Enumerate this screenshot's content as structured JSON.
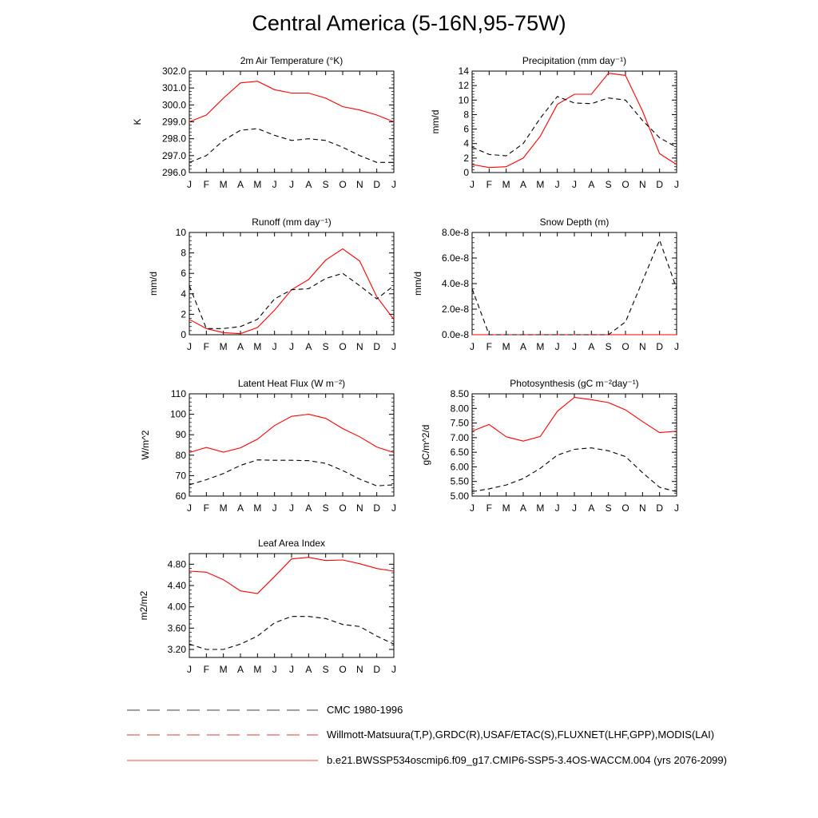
{
  "title": "Central America (5-16N,95-75W)",
  "colors": {
    "model": "#ff0000",
    "obs": "#000000"
  },
  "months": [
    "J",
    "F",
    "M",
    "A",
    "M",
    "J",
    "J",
    "A",
    "S",
    "O",
    "N",
    "D",
    "J"
  ],
  "legend": {
    "cmc": "CMC 1980-1996",
    "obs": "Willmott-Matsuura(T,P),GRDC(R),USAF/ETAC(S),FLUXNET(LHF,GPP),MODIS(LAI)",
    "model": "b.e21.BWSSP534oscmip6.f09_g17.CMIP6-SSP5-3.4OS-WACCM.004 (yrs 2076-2099)"
  },
  "chart_data": [
    {
      "type": "line",
      "title": "2m Air Temperature (°K)",
      "ylabel": "K",
      "ylim": [
        296.0,
        302.0
      ],
      "yticks": [
        "296.0",
        "297.0",
        "298.0",
        "299.0",
        "300.0",
        "301.0",
        "302.0"
      ],
      "series": [
        {
          "style": "solid-red",
          "values": [
            299.0,
            299.4,
            300.4,
            301.3,
            301.4,
            300.9,
            300.7,
            300.7,
            300.4,
            299.9,
            299.7,
            299.4,
            299.0
          ]
        },
        {
          "style": "dashed-black",
          "values": [
            296.6,
            297.0,
            297.9,
            298.5,
            298.6,
            298.2,
            297.9,
            298.0,
            297.9,
            297.5,
            297.0,
            296.6,
            296.6
          ]
        }
      ]
    },
    {
      "type": "line",
      "title": "Precipitation (mm day⁻¹)",
      "ylabel": "mm/d",
      "ylim": [
        0,
        14
      ],
      "yticks": [
        "0",
        "2",
        "4",
        "6",
        "8",
        "10",
        "12",
        "14"
      ],
      "series": [
        {
          "style": "solid-red",
          "values": [
            1.1,
            0.7,
            0.8,
            2.0,
            5.0,
            9.4,
            10.8,
            10.8,
            13.7,
            13.4,
            8.5,
            2.6,
            1.1
          ]
        },
        {
          "style": "dashed-black",
          "values": [
            3.5,
            2.5,
            2.3,
            4.0,
            7.5,
            10.5,
            9.6,
            9.5,
            10.3,
            10.0,
            7.2,
            4.8,
            3.5
          ]
        }
      ]
    },
    {
      "type": "line",
      "title": "Runoff (mm day⁻¹)",
      "ylabel": "mm/d",
      "ylim": [
        0,
        10
      ],
      "yticks": [
        "0",
        "2",
        "4",
        "6",
        "8",
        "10"
      ],
      "series": [
        {
          "style": "solid-red",
          "values": [
            1.5,
            0.6,
            0.2,
            0.1,
            0.7,
            2.4,
            4.4,
            5.4,
            7.3,
            8.4,
            7.2,
            3.7,
            1.5
          ]
        },
        {
          "style": "dashed-black",
          "values": [
            4.8,
            0.6,
            0.6,
            0.8,
            1.5,
            3.5,
            4.4,
            4.5,
            5.5,
            6.0,
            4.8,
            3.5,
            4.8
          ]
        }
      ]
    },
    {
      "type": "line",
      "title": "Snow Depth (m)",
      "ylabel": "mm/d",
      "ylim": [
        0,
        8e-08
      ],
      "yticks": [
        "0.0e-8",
        "2.0e-8",
        "4.0e-8",
        "6.0e-8",
        "8.0e-8"
      ],
      "series": [
        {
          "style": "solid-red",
          "values": [
            0,
            0,
            0,
            0,
            0,
            0,
            0,
            0,
            0,
            0,
            0,
            0,
            0
          ]
        },
        {
          "style": "dashed-black",
          "values": [
            3.6e-08,
            0,
            0,
            0,
            0,
            0,
            0,
            0,
            0,
            1e-08,
            4.2e-08,
            7.4e-08,
            3.6e-08
          ]
        }
      ]
    },
    {
      "type": "line",
      "title": "Latent Heat Flux (W m⁻²)",
      "ylabel": "W/m^2",
      "ylim": [
        60,
        110
      ],
      "yticks": [
        "60",
        "70",
        "80",
        "90",
        "100",
        "110"
      ],
      "series": [
        {
          "style": "solid-red",
          "values": [
            81.3,
            83.8,
            81.5,
            83.6,
            87.8,
            94.5,
            99.0,
            100.0,
            98.0,
            93.0,
            89.0,
            84.0,
            81.3
          ]
        },
        {
          "style": "dashed-black",
          "values": [
            65.5,
            68.0,
            71.0,
            75.0,
            77.7,
            77.5,
            77.5,
            77.3,
            76.0,
            72.5,
            68.3,
            65.0,
            65.5
          ]
        }
      ]
    },
    {
      "type": "line",
      "title": "Photosynthesis (gC m⁻²day⁻¹)",
      "ylabel": "gC/m^2/d",
      "ylim": [
        5.0,
        8.5
      ],
      "yticks": [
        "5.00",
        "5.50",
        "6.00",
        "6.50",
        "7.00",
        "7.50",
        "8.00",
        "8.50"
      ],
      "series": [
        {
          "style": "solid-red",
          "values": [
            7.22,
            7.45,
            7.03,
            6.88,
            7.04,
            7.9,
            8.38,
            8.3,
            8.2,
            7.95,
            7.55,
            7.17,
            7.22
          ]
        },
        {
          "style": "dashed-black",
          "values": [
            5.15,
            5.25,
            5.38,
            5.6,
            5.95,
            6.4,
            6.6,
            6.65,
            6.55,
            6.35,
            5.8,
            5.3,
            5.15
          ]
        }
      ]
    },
    {
      "type": "line",
      "title": "Leaf Area Index",
      "ylabel": "m2/m2",
      "ylim": [
        3.05,
        5.0
      ],
      "yticks": [
        "3.20",
        "3.60",
        "4.00",
        "4.40",
        "4.80"
      ],
      "series": [
        {
          "style": "solid-red",
          "values": [
            4.67,
            4.65,
            4.51,
            4.3,
            4.25,
            4.57,
            4.9,
            4.93,
            4.87,
            4.88,
            4.81,
            4.72,
            4.67
          ]
        },
        {
          "style": "dashed-black",
          "values": [
            3.3,
            3.2,
            3.2,
            3.3,
            3.45,
            3.7,
            3.82,
            3.82,
            3.78,
            3.67,
            3.63,
            3.45,
            3.3
          ]
        }
      ]
    }
  ]
}
